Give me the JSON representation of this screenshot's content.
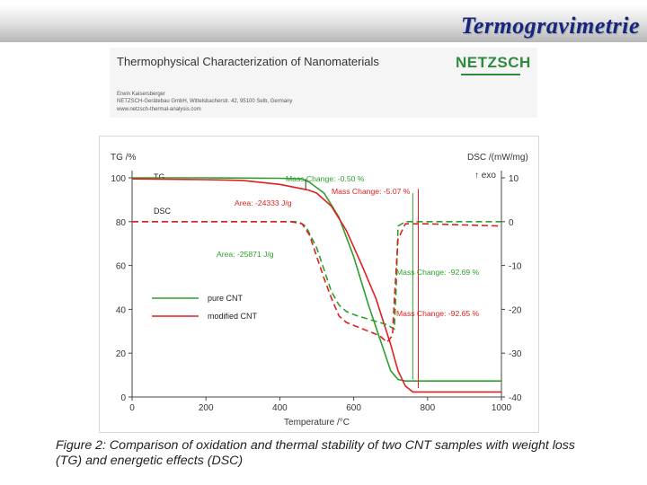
{
  "slide": {
    "title": "Termogravimetrie"
  },
  "header": {
    "heading": "Thermophysical Characterization of Nanomaterials",
    "author": "Erwin Kaisersberger",
    "company": "NETZSCH-Gerätebau GmbH, Wittelsbacherstr. 42, 95100 Selb, Germany",
    "website": "www.netzsch-thermal-analysis.com",
    "logo_text": "NETZSCH",
    "logo_color": "#2e8b3e"
  },
  "caption": "Figure 2: Comparison of oxidation and thermal stability of two CNT samples with weight loss (TG) and energetic effects (DSC)",
  "colors": {
    "pure": "#2ca02c",
    "modified": "#e02020",
    "axis": "#444444"
  },
  "chart_data": {
    "type": "line",
    "xlabel": "Temperature /°C",
    "ylabel": "TG /%",
    "y2label": "DSC /(mW/mg)",
    "exo_label": "↑ exo",
    "xlim": [
      0,
      1000
    ],
    "ylim": [
      0,
      100
    ],
    "y2lim": [
      -40,
      10
    ],
    "x_ticks": [
      0,
      200,
      400,
      600,
      800,
      1000
    ],
    "y_ticks": [
      0,
      20,
      40,
      60,
      80,
      100
    ],
    "y2_ticks": [
      -40,
      -30,
      -20,
      -10,
      0,
      10
    ],
    "legend": {
      "position": "lower-left",
      "entries": [
        "pure CNT",
        "modified CNT"
      ]
    },
    "curve_labels": [
      "TG",
      "DSC"
    ],
    "series": [
      {
        "name": "pure CNT",
        "kind": "TG",
        "axis": "left",
        "color": "#2ca02c",
        "x": [
          0,
          200,
          400,
          460,
          480,
          520,
          560,
          600,
          640,
          680,
          700,
          720,
          740,
          760,
          1000
        ],
        "y": [
          100,
          100,
          99.8,
          99.5,
          98,
          93,
          82,
          64,
          42,
          22,
          12,
          8,
          7.3,
          7.3,
          7.3
        ]
      },
      {
        "name": "modified CNT",
        "kind": "TG",
        "axis": "left",
        "color": "#e02020",
        "x": [
          0,
          200,
          300,
          400,
          460,
          480,
          500,
          540,
          580,
          620,
          660,
          700,
          720,
          740,
          760,
          1000
        ],
        "y": [
          99.5,
          99.2,
          98.8,
          97,
          95,
          94.3,
          93,
          87,
          76,
          61,
          45,
          24,
          12,
          5,
          2.3,
          2.3
        ]
      },
      {
        "name": "pure CNT",
        "kind": "DSC",
        "axis": "right",
        "color": "#2ca02c",
        "x": [
          0,
          300,
          400,
          450,
          470,
          500,
          520,
          540,
          560,
          580,
          610,
          650,
          690,
          710,
          715,
          720,
          740,
          800,
          1000
        ],
        "y": [
          0,
          0,
          0,
          0,
          -1,
          -6,
          -11,
          -16,
          -19,
          -20.5,
          -21.5,
          -22.5,
          -23.5,
          -24.5,
          -15,
          -1,
          0,
          0,
          0
        ]
      },
      {
        "name": "modified CNT",
        "kind": "DSC",
        "axis": "right",
        "color": "#e02020",
        "x": [
          0,
          300,
          380,
          430,
          460,
          480,
          500,
          520,
          540,
          560,
          580,
          610,
          640,
          670,
          690,
          705,
          710,
          720,
          740,
          800,
          1000
        ],
        "y": [
          0,
          0,
          0,
          0,
          -0.5,
          -3,
          -8,
          -13,
          -17.5,
          -21.5,
          -23,
          -24,
          -25,
          -26,
          -27.5,
          -26,
          -18,
          -4,
          -0.5,
          -0.5,
          -1
        ]
      }
    ],
    "annotations": [
      {
        "text": "Mass Change: -0.50 %",
        "color": "#2ca02c"
      },
      {
        "text": "Mass Change: -5.07 %",
        "color": "#e02020"
      },
      {
        "text": "Area: -24333 J/g",
        "color": "#e02020"
      },
      {
        "text": "Area: -25871 J/g",
        "color": "#2ca02c"
      },
      {
        "text": "Mass Change: -92.69 %",
        "color": "#2ca02c"
      },
      {
        "text": "Mass Change: -92.65 %",
        "color": "#e02020"
      }
    ]
  }
}
